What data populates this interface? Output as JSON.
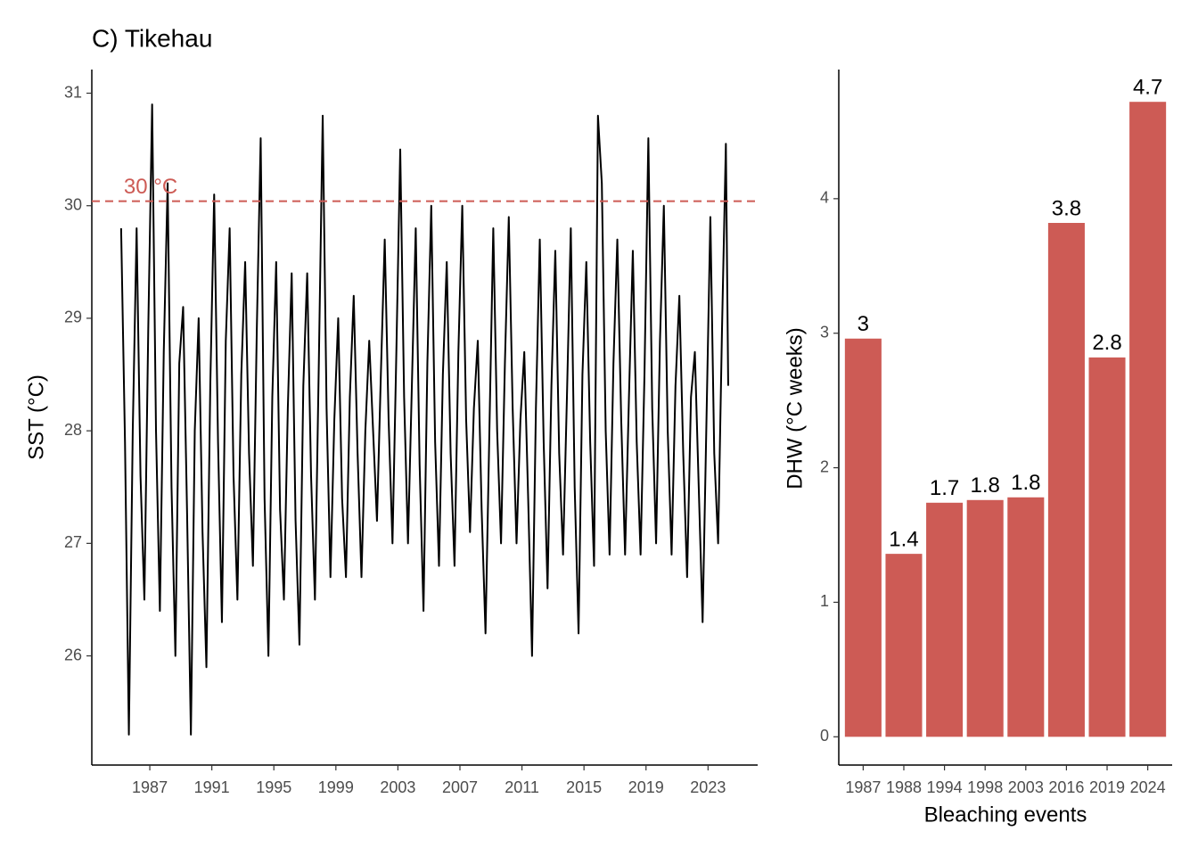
{
  "chart_data": [
    {
      "type": "line",
      "title": "C) Tikehau",
      "ylabel": "SST (°C)",
      "color": "#000000",
      "xlim": [
        1983.26,
        2026.2
      ],
      "xticks": [
        1987,
        1991,
        1995,
        1999,
        2003,
        2007,
        2011,
        2015,
        2019,
        2023
      ],
      "ylim": [
        25.03,
        31.21
      ],
      "yticks": [
        26,
        27,
        28,
        29,
        30,
        31
      ],
      "reference_line": {
        "value": 30.04,
        "label": "30 °C",
        "color": "#cd5b55"
      },
      "x": [
        1985.15,
        1985.4,
        1985.65,
        1985.9,
        1986.15,
        1986.4,
        1986.65,
        1986.9,
        1987.15,
        1987.4,
        1987.65,
        1987.9,
        1988.15,
        1988.4,
        1988.65,
        1988.9,
        1989.15,
        1989.4,
        1989.65,
        1989.9,
        1990.15,
        1990.4,
        1990.65,
        1990.9,
        1991.15,
        1991.4,
        1991.65,
        1991.9,
        1992.15,
        1992.4,
        1992.65,
        1992.9,
        1993.15,
        1993.4,
        1993.65,
        1993.9,
        1994.15,
        1994.4,
        1994.65,
        1994.9,
        1995.15,
        1995.4,
        1995.65,
        1995.9,
        1996.15,
        1996.4,
        1996.65,
        1996.9,
        1997.15,
        1997.4,
        1997.65,
        1997.9,
        1998.15,
        1998.4,
        1998.65,
        1998.9,
        1999.15,
        1999.4,
        1999.65,
        1999.9,
        2000.15,
        2000.4,
        2000.65,
        2000.9,
        2001.15,
        2001.4,
        2001.65,
        2001.9,
        2002.15,
        2002.4,
        2002.65,
        2002.9,
        2003.15,
        2003.4,
        2003.65,
        2003.9,
        2004.15,
        2004.4,
        2004.65,
        2004.9,
        2005.15,
        2005.4,
        2005.65,
        2005.9,
        2006.15,
        2006.4,
        2006.65,
        2006.9,
        2007.15,
        2007.4,
        2007.65,
        2007.9,
        2008.15,
        2008.4,
        2008.65,
        2008.9,
        2009.15,
        2009.4,
        2009.65,
        2009.9,
        2010.15,
        2010.4,
        2010.65,
        2010.9,
        2011.15,
        2011.4,
        2011.65,
        2011.9,
        2012.15,
        2012.4,
        2012.65,
        2012.9,
        2013.15,
        2013.4,
        2013.65,
        2013.9,
        2014.15,
        2014.4,
        2014.65,
        2014.9,
        2015.15,
        2015.4,
        2015.65,
        2015.9,
        2016.15,
        2016.4,
        2016.65,
        2016.9,
        2017.15,
        2017.4,
        2017.65,
        2017.9,
        2018.15,
        2018.4,
        2018.65,
        2018.9,
        2019.15,
        2019.4,
        2019.65,
        2019.9,
        2020.15,
        2020.4,
        2020.65,
        2020.9,
        2021.15,
        2021.4,
        2021.65,
        2021.9,
        2022.15,
        2022.4,
        2022.65,
        2022.9,
        2023.15,
        2023.4,
        2023.65,
        2023.9,
        2024.15,
        2024.3
      ],
      "values": [
        29.8,
        27.9,
        25.3,
        28.0,
        29.8,
        27.6,
        26.5,
        28.9,
        30.9,
        28.0,
        26.4,
        28.7,
        30.2,
        27.5,
        26.0,
        28.6,
        29.1,
        27.3,
        25.3,
        28.0,
        29.0,
        27.1,
        25.9,
        28.4,
        30.1,
        27.9,
        26.3,
        28.8,
        29.8,
        27.6,
        26.5,
        28.5,
        29.5,
        27.8,
        26.8,
        28.9,
        30.6,
        27.4,
        26.0,
        28.3,
        29.5,
        27.3,
        26.5,
        28.2,
        29.4,
        27.2,
        26.1,
        28.4,
        29.4,
        27.6,
        26.5,
        28.6,
        30.8,
        28.2,
        26.7,
        28.1,
        29.0,
        27.4,
        26.7,
        28.3,
        29.2,
        27.8,
        26.7,
        28.0,
        28.8,
        28.0,
        27.2,
        28.5,
        29.7,
        28.1,
        27.0,
        28.7,
        30.5,
        28.3,
        27.0,
        28.4,
        29.8,
        27.7,
        26.4,
        28.6,
        30.0,
        27.9,
        26.8,
        28.5,
        29.5,
        27.8,
        26.8,
        28.7,
        30.0,
        28.1,
        27.1,
        28.2,
        28.8,
        27.3,
        26.2,
        28.0,
        29.8,
        28.0,
        27.0,
        28.6,
        29.9,
        28.2,
        27.0,
        28.1,
        28.7,
        27.4,
        26.0,
        28.2,
        29.7,
        27.9,
        26.6,
        28.4,
        29.6,
        27.8,
        26.9,
        28.3,
        29.8,
        27.5,
        26.2,
        28.5,
        29.5,
        27.9,
        26.8,
        30.8,
        30.2,
        28.0,
        26.9,
        28.6,
        29.7,
        28.1,
        26.9,
        28.3,
        29.6,
        27.9,
        26.9,
        28.5,
        30.6,
        28.2,
        27.0,
        28.8,
        30.0,
        28.0,
        26.9,
        28.4,
        29.2,
        27.8,
        26.7,
        28.3,
        28.7,
        27.5,
        26.3,
        28.1,
        29.9,
        27.8,
        27.0,
        28.9,
        30.55,
        28.4
      ]
    },
    {
      "type": "bar",
      "xlabel": "Bleaching events",
      "ylabel": "DHW (°C weeks)",
      "color": "#cd5b55",
      "categories": [
        "1987",
        "1988",
        "1994",
        "1998",
        "2003",
        "2016",
        "2019",
        "2024"
      ],
      "values": [
        2.96,
        1.36,
        1.74,
        1.76,
        1.78,
        3.82,
        2.82,
        4.72
      ],
      "value_labels": [
        "3",
        "1.4",
        "1.7",
        "1.8",
        "1.8",
        "3.8",
        "2.8",
        "4.7"
      ],
      "ylim": [
        -0.21,
        4.96
      ],
      "yticks": [
        0,
        1,
        2,
        3,
        4
      ]
    }
  ]
}
